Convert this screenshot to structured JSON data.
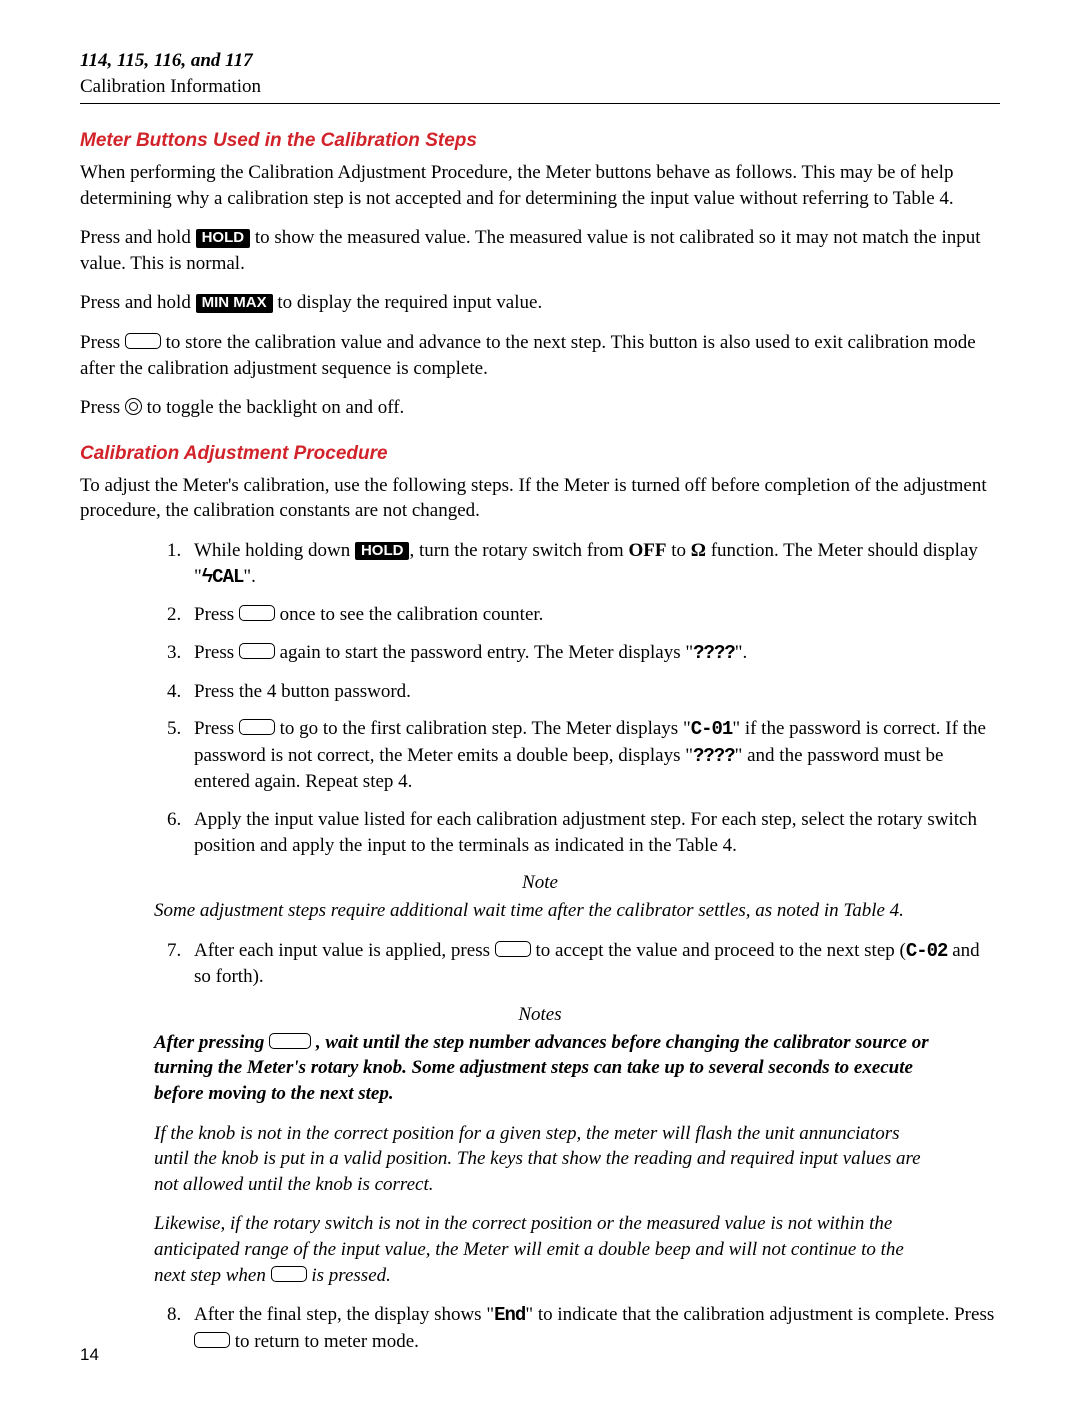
{
  "header": {
    "models": "114, 115, 116, and 117",
    "subtitle": "Calibration Information"
  },
  "section1": {
    "title": "Meter Buttons Used in the Calibration Steps",
    "p1a": "When performing the Calibration Adjustment Procedure, the Meter buttons behave as follows. This may be of help determining why a calibration step is not accepted and for determining the input value without referring to Table 4.",
    "p2a": "Press and hold ",
    "p2b": " to show the measured value. The measured value is not calibrated so it may not match the input value. This is normal.",
    "p3a": "Press and hold ",
    "p3b": " to display the required input value.",
    "p4a": "Press ",
    "p4b": " to store the calibration value and advance to the next step. This button is also used to exit calibration mode after the calibration adjustment sequence is complete.",
    "p5a": "Press ",
    "p5b": " to toggle the backlight on and off."
  },
  "buttons": {
    "hold": "HOLD",
    "minmax": "MIN MAX"
  },
  "section2": {
    "title": "Calibration Adjustment Procedure",
    "intro": "To adjust the Meter's calibration, use the following steps. If the Meter is turned off before completion of the adjustment procedure, the calibration constants are not changed.",
    "li1a": "While holding down ",
    "li1b": ", turn the rotary switch from ",
    "li1_off": "OFF",
    "li1c": " to ",
    "li1_ohm": "Ω",
    "li1d": " function. The Meter should display \"",
    "li1_seg": "ϟCAL",
    "li1e": "\".",
    "li2a": "Press ",
    "li2b": " once to see the calibration counter.",
    "li3a": "Press ",
    "li3b": " again to start the password entry. The Meter displays \"",
    "li3_seg": "????",
    "li3c": "\".",
    "li4": "Press the 4 button password.",
    "li5a": "Press ",
    "li5b": " to go to the first calibration step. The Meter displays \"",
    "li5_seg1": "C-01",
    "li5c": "\" if the password is correct. If the password is not correct, the Meter emits a double beep, displays \"",
    "li5_seg2": "????",
    "li5d": "\" and the password must be entered again. Repeat step 4.",
    "li6": "Apply the input value listed for each calibration adjustment step. For each step, select the rotary switch position and apply the input to the terminals as indicated in the Table 4.",
    "note1_h": "Note",
    "note1": "Some adjustment steps require additional wait time after the calibrator settles, as noted in Table 4.",
    "li7a": "After each input value is applied, press ",
    "li7b": " to accept the value and proceed to the next step (",
    "li7_seg": "C-02",
    "li7c": " and so forth).",
    "notes_h": "Notes",
    "n2a": "After pressing ",
    "n2b": " , wait until the step number advances before changing the calibrator source or turning the Meter's rotary knob. Some adjustment steps can take up to several seconds to execute before moving to the next step.",
    "n3": "If the knob is not in the correct position for a given step, the meter will flash the unit annunciators until the knob is put in a valid position. The keys that show the reading and required input values are not allowed until the knob is correct.",
    "n4a": "Likewise, if the rotary switch is not in the correct position or the measured value is not within the anticipated range of the input value, the Meter will emit a double beep and will not continue to the next step when ",
    "n4b": " is pressed.",
    "li8a": "After the final step, the display shows \"",
    "li8_seg": "End",
    "li8b": "\" to indicate that the calibration adjustment is complete. Press ",
    "li8c": " to return to meter mode."
  },
  "page_number": "14"
}
